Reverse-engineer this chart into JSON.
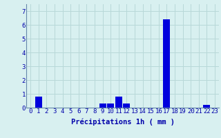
{
  "hours": [
    0,
    1,
    2,
    3,
    4,
    5,
    6,
    7,
    8,
    9,
    10,
    11,
    12,
    13,
    14,
    15,
    16,
    17,
    18,
    19,
    20,
    21,
    22,
    23
  ],
  "values": [
    0,
    0.8,
    0,
    0,
    0,
    0,
    0,
    0,
    0,
    0.3,
    0.3,
    0.8,
    0.3,
    0,
    0,
    0,
    0,
    6.4,
    0,
    0,
    0,
    0,
    0.2,
    0
  ],
  "bar_color": "#0000dd",
  "background_color": "#d8f0f0",
  "grid_color": "#b8d8d8",
  "axis_color": "#6688aa",
  "tick_color": "#0000aa",
  "xlabel": "Précipitations 1h ( mm )",
  "xlabel_fontsize": 7.5,
  "ylim": [
    0,
    7.5
  ],
  "yticks": [
    0,
    1,
    2,
    3,
    4,
    5,
    6,
    7
  ],
  "tick_label_fontsize": 6.5
}
